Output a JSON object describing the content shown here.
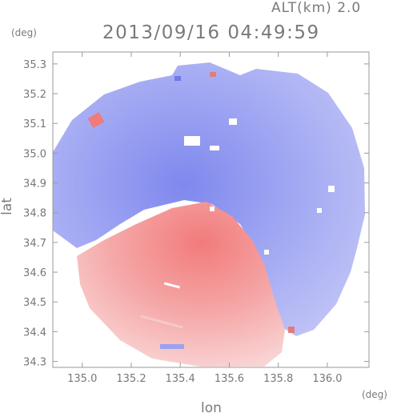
{
  "header": {
    "altitude_label": "ALT(km) 2.0",
    "timestamp": "2013/09/16 04:49:59"
  },
  "colors": {
    "frame": "#9a9a9a",
    "negative": "#8c93f0",
    "positive": "#f08a8a"
  },
  "chart_data": {
    "type": "heatmap",
    "title": "2013/09/16 04:49:59",
    "subtitle": "ALT(km) 2.0",
    "xlabel": "lon",
    "ylabel": "lat",
    "x_unit": "(deg)",
    "y_unit": "(deg)",
    "xlim": [
      134.88,
      136.17
    ],
    "ylim": [
      34.28,
      35.34
    ],
    "x_ticks": [
      135.0,
      135.2,
      135.4,
      135.6,
      135.8,
      136.0
    ],
    "x_tick_labels": [
      "135.0",
      "135.2",
      "135.4",
      "135.6",
      "135.8",
      "136.0"
    ],
    "y_ticks": [
      34.3,
      34.4,
      34.5,
      34.6,
      34.7,
      34.8,
      34.9,
      35.0,
      35.1,
      35.2,
      35.3
    ],
    "y_tick_labels": [
      "34.3",
      "34.4",
      "34.5",
      "34.6",
      "34.7",
      "34.8",
      "34.9",
      "35.0",
      "35.1",
      "35.2",
      "35.3"
    ],
    "colormap": "blue-white-red (diverging)",
    "regions": [
      {
        "sign": "negative",
        "area": "north and east of center",
        "color": "#8c93f0"
      },
      {
        "sign": "positive",
        "area": "south-west of center",
        "color": "#f08a8a"
      }
    ],
    "radar_center": {
      "lon": 135.52,
      "lat": 34.82
    },
    "grid": false
  }
}
